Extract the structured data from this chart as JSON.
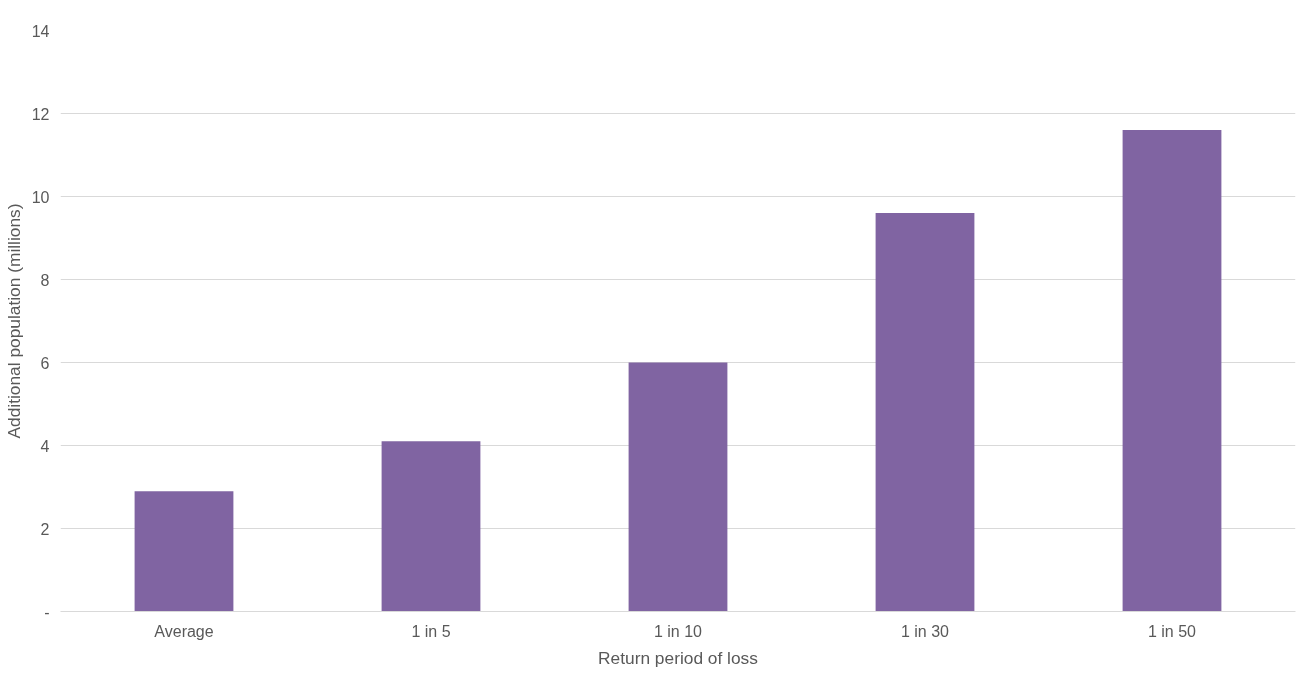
{
  "chart_data": {
    "type": "bar",
    "xlabel": "Return period of loss",
    "ylabel": "Additional population (millions)",
    "categories": [
      "Average",
      "1 in 5",
      "1 in 10",
      "1 in 30",
      "1 in 50"
    ],
    "values": [
      2.9,
      4.1,
      6.0,
      9.6,
      11.6
    ],
    "color": "#8064a2",
    "ylim": [
      0,
      14
    ],
    "yticks": [
      {
        "value": 0,
        "label": "-"
      },
      2,
      4,
      6,
      8,
      10,
      12,
      14
    ],
    "grid": "y"
  }
}
